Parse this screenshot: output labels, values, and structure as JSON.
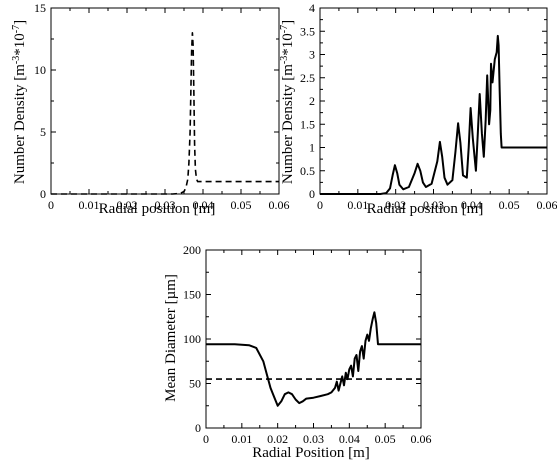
{
  "chart_data": [
    {
      "type": "line",
      "title": "",
      "xlabel": "Radial position [m]",
      "ylabel": "Number Density [m",
      "ylabel_super": "-3",
      "ylabel_mid": "*10",
      "ylabel_super2": "-7",
      "ylabel_end": "]",
      "xlim": [
        0,
        0.06
      ],
      "ylim": [
        0,
        15
      ],
      "xticks": [
        0,
        0.01,
        0.02,
        0.03,
        0.04,
        0.05,
        0.06
      ],
      "xtick_labels": [
        "0",
        "0.01",
        "0.02",
        "0.03",
        "0.04",
        "0.05",
        "0.06"
      ],
      "yticks": [
        0,
        5,
        10,
        15
      ],
      "ytick_labels": [
        "0",
        "5",
        "10",
        "15"
      ],
      "grid": false,
      "series": [
        {
          "style": "dashed",
          "x": [
            0,
            0.032,
            0.034,
            0.035,
            0.0355,
            0.036,
            0.0363,
            0.0366,
            0.0368,
            0.037,
            0.0372,
            0.0374,
            0.0376,
            0.0378,
            0.038,
            0.0383,
            0.0386,
            0.039,
            0.06
          ],
          "y": [
            0,
            0,
            0.05,
            0.2,
            0.5,
            1.2,
            2.5,
            5.0,
            8.0,
            11.5,
            13.0,
            12.0,
            8.0,
            4.0,
            2.0,
            1.2,
            1.0,
            1.0,
            1.0
          ]
        }
      ]
    },
    {
      "type": "line",
      "title": "",
      "xlabel": "Radial position [m]",
      "ylabel": "Number Density [m",
      "ylabel_super": "-3",
      "ylabel_mid": "*10",
      "ylabel_super2": "-7",
      "ylabel_end": "]",
      "xlim": [
        0,
        0.06
      ],
      "ylim": [
        0,
        4
      ],
      "xticks": [
        0,
        0.01,
        0.02,
        0.03,
        0.04,
        0.05,
        0.06
      ],
      "xtick_labels": [
        "0",
        "0.01",
        "0.02",
        "0.03",
        "0.04",
        "0.05",
        "0.06"
      ],
      "yticks": [
        0,
        0.5,
        1,
        1.5,
        2,
        2.5,
        3,
        3.5,
        4
      ],
      "ytick_labels": [
        "0",
        "0.5",
        "1",
        "1.5",
        "2",
        "2.5",
        "3",
        "3.5",
        "4"
      ],
      "grid": false,
      "series": [
        {
          "style": "solid",
          "x": [
            0,
            0.016,
            0.0175,
            0.0185,
            0.0192,
            0.0198,
            0.0204,
            0.021,
            0.022,
            0.0235,
            0.025,
            0.0258,
            0.0265,
            0.0272,
            0.028,
            0.0295,
            0.031,
            0.0317,
            0.0323,
            0.0329,
            0.0337,
            0.035,
            0.0358,
            0.0365,
            0.0371,
            0.0378,
            0.0388,
            0.0393,
            0.0398,
            0.0404,
            0.0412,
            0.0417,
            0.0422,
            0.0428,
            0.0433,
            0.0438,
            0.0442,
            0.0447,
            0.045,
            0.0452,
            0.0456,
            0.0462,
            0.0467,
            0.047,
            0.0472,
            0.0475,
            0.0478,
            0.048,
            0.06
          ],
          "y": [
            0,
            0,
            0.02,
            0.12,
            0.4,
            0.62,
            0.45,
            0.2,
            0.1,
            0.15,
            0.45,
            0.65,
            0.5,
            0.25,
            0.15,
            0.22,
            0.7,
            1.12,
            0.8,
            0.35,
            0.2,
            0.3,
            0.9,
            1.52,
            1.1,
            0.4,
            0.35,
            1.0,
            1.85,
            1.2,
            0.5,
            1.3,
            2.15,
            1.3,
            0.8,
            1.6,
            2.55,
            1.5,
            1.8,
            2.8,
            2.4,
            2.9,
            3.05,
            3.4,
            3.2,
            2.2,
            1.3,
            1.0,
            1.0
          ]
        }
      ]
    },
    {
      "type": "line",
      "title": "",
      "xlabel": "Radial Position [m]",
      "ylabel": "Mean Diameter [µm]",
      "xlim": [
        0,
        0.06
      ],
      "ylim": [
        0,
        200
      ],
      "xticks": [
        0,
        0.01,
        0.02,
        0.03,
        0.04,
        0.05,
        0.06
      ],
      "xtick_labels": [
        "0",
        "0.01",
        "0.02",
        "0.03",
        "0.04",
        "0.05",
        "0.06"
      ],
      "yticks": [
        0,
        50,
        100,
        150,
        200
      ],
      "ytick_labels": [
        "0",
        "50",
        "100",
        "150",
        "200"
      ],
      "grid": false,
      "series": [
        {
          "style": "solid",
          "x": [
            0,
            0.008,
            0.012,
            0.014,
            0.016,
            0.017,
            0.018,
            0.019,
            0.02,
            0.021,
            0.022,
            0.023,
            0.024,
            0.025,
            0.026,
            0.027,
            0.028,
            0.03,
            0.032,
            0.034,
            0.035,
            0.036,
            0.0365,
            0.037,
            0.0375,
            0.038,
            0.0385,
            0.039,
            0.0395,
            0.04,
            0.0405,
            0.041,
            0.0415,
            0.042,
            0.0425,
            0.043,
            0.0435,
            0.044,
            0.0445,
            0.045,
            0.0455,
            0.046,
            0.0465,
            0.047,
            0.0475,
            0.048,
            0.06
          ],
          "y": [
            94,
            94,
            93,
            90,
            75,
            60,
            45,
            35,
            25,
            30,
            38,
            40,
            38,
            32,
            28,
            30,
            33,
            34,
            36,
            38,
            40,
            45,
            52,
            42,
            50,
            58,
            48,
            62,
            55,
            66,
            70,
            58,
            78,
            82,
            64,
            86,
            92,
            78,
            98,
            105,
            98,
            112,
            122,
            130,
            118,
            94,
            94
          ]
        },
        {
          "style": "dashed",
          "x": [
            0,
            0.06
          ],
          "y": [
            55,
            55
          ]
        }
      ]
    }
  ]
}
